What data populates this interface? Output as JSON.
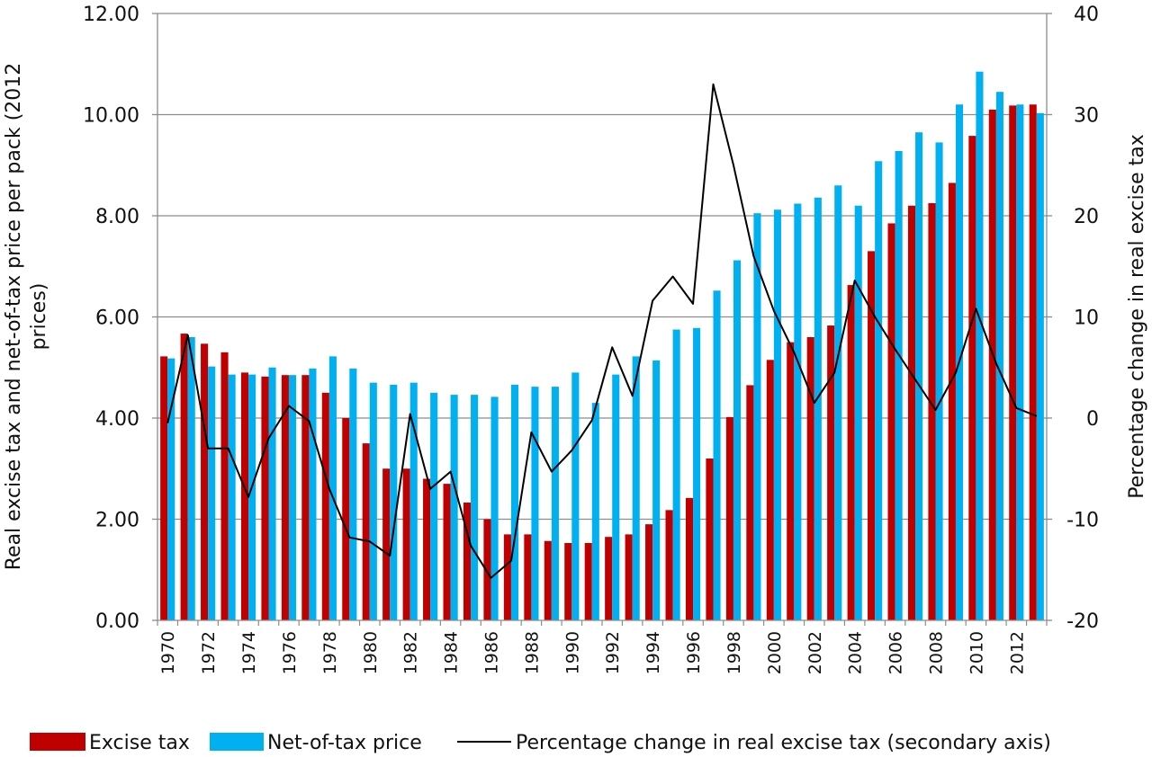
{
  "chart_data": {
    "type": "bar",
    "title": "",
    "years": [
      1970,
      1971,
      1972,
      1973,
      1974,
      1975,
      1976,
      1977,
      1978,
      1979,
      1980,
      1981,
      1982,
      1983,
      1984,
      1985,
      1986,
      1987,
      1988,
      1989,
      1990,
      1991,
      1992,
      1993,
      1994,
      1995,
      1996,
      1997,
      1998,
      1999,
      2000,
      2001,
      2002,
      2003,
      2004,
      2005,
      2006,
      2007,
      2008,
      2009,
      2010,
      2011,
      2012,
      2013
    ],
    "x_tick_labels": [
      "1970",
      "1972",
      "1974",
      "1976",
      "1978",
      "1980",
      "1982",
      "1984",
      "1986",
      "1988",
      "1990",
      "1992",
      "1994",
      "1996",
      "1998",
      "2000",
      "2002",
      "2004",
      "2006",
      "2008",
      "2010",
      "2012"
    ],
    "series": [
      {
        "name": "Excise tax",
        "kind": "bar",
        "axis": "primary",
        "color": "#C00000",
        "values": [
          5.22,
          5.67,
          5.47,
          5.3,
          4.9,
          4.82,
          4.85,
          4.85,
          4.5,
          4.0,
          3.5,
          3.0,
          3.0,
          2.8,
          2.7,
          2.33,
          2.0,
          1.7,
          1.7,
          1.57,
          1.53,
          1.53,
          1.65,
          1.7,
          1.9,
          2.18,
          2.42,
          3.2,
          4.02,
          4.65,
          5.15,
          5.5,
          5.6,
          5.83,
          6.63,
          7.3,
          7.85,
          8.2,
          8.25,
          8.65,
          9.58,
          10.1,
          10.18,
          10.2
        ]
      },
      {
        "name": "Net-of-tax price",
        "kind": "bar",
        "axis": "primary",
        "color": "#00B0F0",
        "values": [
          5.18,
          5.6,
          5.02,
          4.86,
          4.86,
          5.0,
          4.85,
          4.98,
          5.22,
          4.98,
          4.7,
          4.66,
          4.7,
          4.5,
          4.46,
          4.46,
          4.42,
          4.66,
          4.62,
          4.62,
          4.9,
          4.3,
          4.86,
          5.22,
          5.14,
          5.75,
          5.78,
          6.52,
          7.12,
          8.05,
          8.12,
          8.24,
          8.36,
          8.6,
          8.2,
          9.08,
          9.28,
          9.65,
          9.45,
          10.2,
          10.85,
          10.45,
          10.2,
          10.03
        ]
      },
      {
        "name": "Percentage change in real excise tax (secondary axis)",
        "kind": "line",
        "axis": "secondary",
        "color": "#000000",
        "values": [
          -0.5,
          8.2,
          -3.0,
          -3.0,
          -7.8,
          -2.0,
          1.2,
          -0.3,
          -7.0,
          -11.8,
          -12.2,
          -13.6,
          0.4,
          -7.0,
          -5.3,
          -12.6,
          -15.8,
          -14.1,
          -1.4,
          -5.3,
          -3.2,
          -0.2,
          7.0,
          2.2,
          11.6,
          14.0,
          11.3,
          33.0,
          25.0,
          16.0,
          10.6,
          6.5,
          1.5,
          4.5,
          13.6,
          10.0,
          6.8,
          3.8,
          0.8,
          4.5,
          10.8,
          5.4,
          1.0,
          0.2
        ]
      }
    ],
    "y_primary": {
      "label": "Real excise tax and net-of-tax price per pack (2012 prices)",
      "min": 0,
      "max": 12,
      "step": 2,
      "tick_labels": [
        "0.00",
        "2.00",
        "4.00",
        "6.00",
        "8.00",
        "10.00",
        "12.00"
      ]
    },
    "y_secondary": {
      "label": "Percentage change in real excise tax",
      "min": -20,
      "max": 40,
      "step": 10,
      "tick_labels": [
        "-20",
        "-10",
        "0",
        "10",
        "20",
        "30",
        "40"
      ]
    },
    "grid": true,
    "legend_position": "bottom"
  }
}
